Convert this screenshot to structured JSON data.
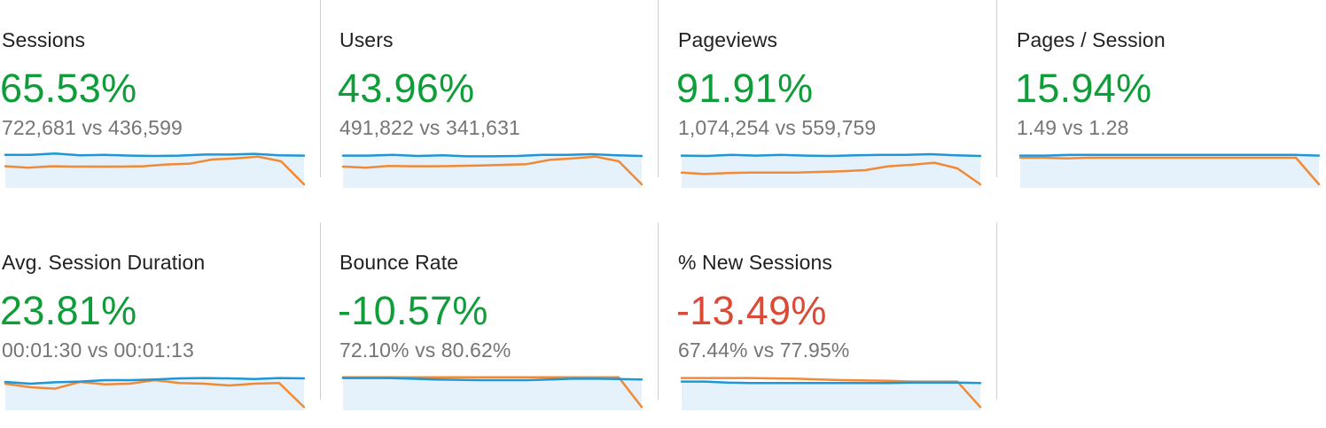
{
  "colors": {
    "positive": "#0f9d3a",
    "negative": "#db4a36",
    "current_line": "#1f96d6",
    "previous_line": "#f08a36",
    "area_fill": "#e6f2fb",
    "divider": "#cfcfcf"
  },
  "metrics": [
    {
      "title": "Sessions",
      "change": "65.53%",
      "change_sign": "positive",
      "comparison": "722,681 vs 436,599",
      "current_series": [
        0.88,
        0.88,
        0.92,
        0.87,
        0.88,
        0.86,
        0.85,
        0.86,
        0.89,
        0.89,
        0.91,
        0.87,
        0.86
      ],
      "previous_series": [
        0.56,
        0.52,
        0.56,
        0.55,
        0.55,
        0.55,
        0.56,
        0.61,
        0.63,
        0.75,
        0.78,
        0.83,
        0.7,
        0.05
      ]
    },
    {
      "title": "Users",
      "change": "43.96%",
      "change_sign": "positive",
      "comparison": "491,822 vs 341,631",
      "current_series": [
        0.86,
        0.86,
        0.88,
        0.85,
        0.87,
        0.84,
        0.84,
        0.85,
        0.88,
        0.88,
        0.9,
        0.87,
        0.85
      ],
      "previous_series": [
        0.55,
        0.52,
        0.57,
        0.56,
        0.56,
        0.57,
        0.58,
        0.6,
        0.62,
        0.74,
        0.78,
        0.83,
        0.7,
        0.05
      ]
    },
    {
      "title": "Pageviews",
      "change": "91.91%",
      "change_sign": "positive",
      "comparison": "1,074,254 vs 559,759",
      "current_series": [
        0.86,
        0.85,
        0.88,
        0.86,
        0.88,
        0.86,
        0.85,
        0.87,
        0.88,
        0.88,
        0.9,
        0.87,
        0.85
      ],
      "previous_series": [
        0.38,
        0.34,
        0.37,
        0.38,
        0.38,
        0.38,
        0.4,
        0.42,
        0.45,
        0.56,
        0.6,
        0.66,
        0.5,
        0.05
      ]
    },
    {
      "title": "Pages / Session",
      "change": "15.94%",
      "change_sign": "positive",
      "comparison": "1.49 vs 1.28",
      "current_series": [
        0.86,
        0.86,
        0.88,
        0.88,
        0.88,
        0.88,
        0.88,
        0.88,
        0.88,
        0.88,
        0.88,
        0.88,
        0.86
      ],
      "previous_series": [
        0.8,
        0.8,
        0.78,
        0.8,
        0.8,
        0.8,
        0.8,
        0.8,
        0.8,
        0.8,
        0.8,
        0.8,
        0.8,
        0.05
      ]
    },
    {
      "title": "Avg. Session Duration",
      "change": "23.81%",
      "change_sign": "positive",
      "comparison": "00:01:30 vs 00:01:13",
      "current_series": [
        0.75,
        0.7,
        0.74,
        0.76,
        0.8,
        0.8,
        0.82,
        0.85,
        0.86,
        0.85,
        0.83,
        0.86,
        0.85
      ],
      "previous_series": [
        0.7,
        0.6,
        0.56,
        0.75,
        0.68,
        0.7,
        0.8,
        0.72,
        0.7,
        0.65,
        0.7,
        0.72,
        0.04
      ]
    },
    {
      "title": "Bounce Rate",
      "change": "-10.57%",
      "change_sign": "positive",
      "comparison": "72.10% vs 80.62%",
      "current_series": [
        0.86,
        0.86,
        0.86,
        0.84,
        0.82,
        0.81,
        0.8,
        0.8,
        0.8,
        0.82,
        0.84,
        0.84,
        0.83,
        0.82
      ],
      "previous_series": [
        0.88,
        0.88,
        0.88,
        0.88,
        0.88,
        0.88,
        0.88,
        0.88,
        0.88,
        0.88,
        0.88,
        0.88,
        0.88,
        0.04
      ]
    },
    {
      "title": "% New Sessions",
      "change": "-13.49%",
      "change_sign": "negative",
      "comparison": "67.44% vs 77.95%",
      "current_series": [
        0.76,
        0.76,
        0.73,
        0.72,
        0.72,
        0.72,
        0.72,
        0.72,
        0.72,
        0.72,
        0.73,
        0.73,
        0.73,
        0.72
      ],
      "previous_series": [
        0.86,
        0.86,
        0.86,
        0.86,
        0.85,
        0.84,
        0.82,
        0.8,
        0.79,
        0.78,
        0.76,
        0.76,
        0.76,
        0.04
      ]
    }
  ]
}
